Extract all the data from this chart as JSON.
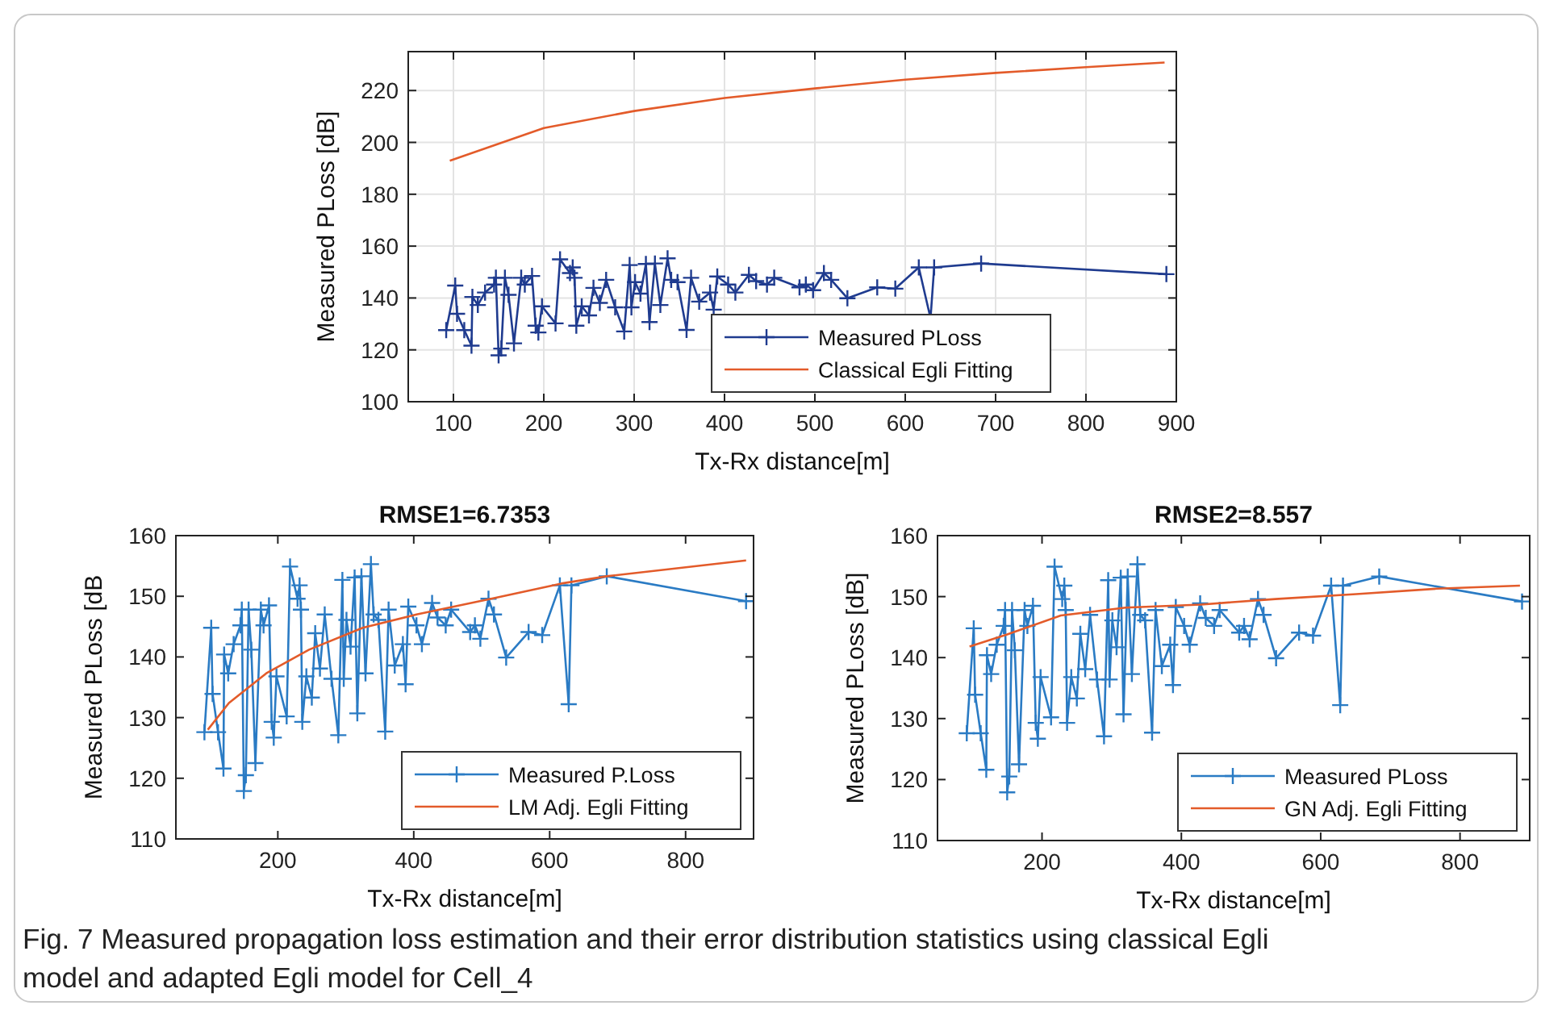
{
  "chart_data": [
    {
      "type": "line",
      "xlabel": "Tx-Rx distance[m]",
      "ylabel": "Measured  PLoss [dB]",
      "xlim": [
        50,
        900
      ],
      "ylim": [
        100,
        235
      ],
      "xticks": [
        100,
        200,
        300,
        400,
        500,
        600,
        700,
        800,
        900
      ],
      "yticks": [
        100,
        120,
        140,
        160,
        180,
        200,
        220
      ],
      "grid": true,
      "legend": "bottom right",
      "series": [
        {
          "name": "Measured PLoss",
          "color": "#1f3b8f",
          "marker": "cross",
          "x": [
            92,
            102,
            104,
            112,
            120,
            121,
            127,
            135,
            145,
            147,
            150,
            153,
            157,
            161,
            167,
            175,
            179,
            187,
            191,
            194,
            198,
            213,
            218,
            229,
            232,
            234,
            236,
            242,
            250,
            255,
            262,
            269,
            279,
            289,
            295,
            297,
            301,
            307,
            313,
            317,
            323,
            329,
            337,
            341,
            348,
            358,
            363,
            372,
            384,
            388,
            392,
            404,
            412,
            427,
            435,
            447,
            455,
            483,
            490,
            498,
            510,
            518,
            536,
            569,
            589,
            615,
            628,
            632,
            684,
            889
          ],
          "values": [
            127.6,
            144.8,
            133.9,
            127.6,
            121.6,
            140.4,
            137.3,
            142.1,
            145.2,
            147.8,
            117.9,
            120.5,
            147.8,
            141.2,
            122.5,
            147.8,
            145.2,
            148.5,
            129.3,
            126.7,
            136.8,
            130.2,
            154.9,
            149.6,
            151.8,
            147.8,
            129.3,
            136.8,
            133.3,
            143.9,
            138.1,
            147,
            136.4,
            127.1,
            152.7,
            136.4,
            146.1,
            141.7,
            153.1,
            130.7,
            153.3,
            137.3,
            155.3,
            147,
            146.1,
            127.7,
            147.8,
            138.6,
            142.1,
            135.5,
            148.3,
            145.2,
            142.1,
            148.9,
            146.5,
            145.2,
            147.8,
            144.1,
            145.2,
            143,
            149.6,
            147,
            139.9,
            144.1,
            143.6,
            151.8,
            132.2,
            151.8,
            153.3,
            149.2
          ]
        },
        {
          "name": "Classical Egli Fitting",
          "color": "#e35b2a",
          "marker": "none",
          "x": [
            96,
            200,
            300,
            400,
            500,
            600,
            700,
            800,
            887
          ],
          "values": [
            192.9,
            205.5,
            212.1,
            217.1,
            220.8,
            224.2,
            226.8,
            229,
            230.8
          ]
        }
      ]
    },
    {
      "type": "line",
      "title": "RMSE1=6.7353",
      "xlabel": "Tx-Rx distance[m]",
      "ylabel": "Measured  PLoss [dB",
      "xlim": [
        50,
        900
      ],
      "ylim": [
        110,
        160
      ],
      "xticks": [
        200,
        400,
        600,
        800
      ],
      "yticks": [
        110,
        120,
        130,
        140,
        150,
        160
      ],
      "grid": false,
      "legend": "bottom right",
      "series": [
        {
          "name": "Measured P.Loss",
          "color": "#2a7bc4",
          "marker": "cross",
          "x": [
            92,
            102,
            104,
            112,
            120,
            121,
            127,
            135,
            145,
            147,
            150,
            153,
            157,
            161,
            167,
            175,
            179,
            187,
            191,
            194,
            198,
            213,
            218,
            229,
            232,
            234,
            236,
            242,
            250,
            255,
            262,
            269,
            279,
            289,
            295,
            297,
            301,
            307,
            313,
            317,
            323,
            329,
            337,
            341,
            348,
            358,
            363,
            372,
            384,
            388,
            392,
            404,
            412,
            427,
            435,
            447,
            455,
            483,
            490,
            498,
            510,
            518,
            536,
            569,
            589,
            615,
            628,
            632,
            684,
            889
          ],
          "values": [
            127.6,
            144.8,
            133.9,
            127.6,
            121.6,
            140.4,
            137.3,
            142.1,
            145.2,
            147.8,
            117.9,
            120.5,
            147.8,
            141.2,
            122.5,
            147.8,
            145.2,
            148.5,
            129.3,
            126.7,
            136.8,
            130.2,
            154.9,
            149.6,
            151.8,
            147.8,
            129.3,
            136.8,
            133.3,
            143.9,
            138.1,
            147,
            136.4,
            127.1,
            152.7,
            136.4,
            146.1,
            141.7,
            153.1,
            130.7,
            153.3,
            137.3,
            155.3,
            147,
            146.1,
            127.7,
            147.8,
            138.6,
            142.1,
            135.5,
            148.3,
            145.2,
            142.1,
            148.9,
            146.5,
            145.2,
            147.8,
            144.1,
            145.2,
            143,
            149.6,
            147,
            139.9,
            144.1,
            143.6,
            151.8,
            132.2,
            151.8,
            153.3,
            149.2
          ]
        },
        {
          "name": "LM Adj. Egli Fitting",
          "color": "#e35b2a",
          "marker": "none",
          "x": [
            97,
            128,
            183,
            246,
            325,
            404,
            514,
            617,
            684,
            889
          ],
          "values": [
            128,
            132.4,
            137.3,
            141.2,
            144.8,
            147,
            149.6,
            152.1,
            153.3,
            155.9
          ]
        }
      ]
    },
    {
      "type": "line",
      "title": "RMSE2=8.557",
      "xlabel": "Tx-Rx distance[m]",
      "ylabel": "Measured  PLoss [dB]",
      "xlim": [
        50,
        900
      ],
      "ylim": [
        110,
        160
      ],
      "xticks": [
        200,
        400,
        600,
        800
      ],
      "yticks": [
        110,
        120,
        130,
        140,
        150,
        160
      ],
      "grid": false,
      "legend": "bottom right",
      "annotations": [
        "Fig. 7 Measured propagation loss estimation and their error distribution statistics using classical Egli model and adapted Egli model for Cell_4"
      ],
      "series": [
        {
          "name": "Measured PLoss",
          "color": "#2a7bc4",
          "marker": "cross",
          "x": [
            92,
            102,
            104,
            112,
            120,
            121,
            127,
            135,
            145,
            147,
            150,
            153,
            157,
            161,
            167,
            175,
            179,
            187,
            191,
            194,
            198,
            213,
            218,
            229,
            232,
            234,
            236,
            242,
            250,
            255,
            262,
            269,
            279,
            289,
            295,
            297,
            301,
            307,
            313,
            317,
            323,
            329,
            337,
            341,
            348,
            358,
            363,
            372,
            384,
            388,
            392,
            404,
            412,
            427,
            435,
            447,
            455,
            483,
            490,
            498,
            510,
            518,
            536,
            569,
            589,
            615,
            628,
            632,
            684,
            889
          ],
          "values": [
            127.6,
            144.8,
            133.9,
            127.6,
            121.6,
            140.4,
            137.3,
            142.1,
            145.2,
            147.8,
            117.9,
            120.5,
            147.8,
            141.2,
            122.5,
            147.8,
            145.2,
            148.5,
            129.3,
            126.7,
            136.8,
            130.2,
            154.9,
            149.6,
            151.8,
            147.8,
            129.3,
            136.8,
            133.3,
            143.9,
            138.1,
            147,
            136.4,
            127.1,
            152.7,
            136.4,
            146.1,
            141.7,
            153.1,
            130.7,
            153.3,
            137.3,
            155.3,
            147,
            146.1,
            127.7,
            147.8,
            138.6,
            142.1,
            135.5,
            148.3,
            145.2,
            142.1,
            148.9,
            146.5,
            145.2,
            147.8,
            144.1,
            145.2,
            143,
            149.6,
            147,
            139.9,
            144.1,
            143.6,
            151.8,
            132.2,
            151.8,
            153.3,
            149.2
          ]
        },
        {
          "name": "GN Adj. Egli Fitting",
          "color": "#e35b2a",
          "marker": "none",
          "x": [
            96,
            150,
            227,
            320,
            428,
            535,
            651,
            767,
            886
          ],
          "values": [
            141.8,
            143.8,
            146.9,
            148.2,
            148.7,
            149.6,
            150.4,
            151.3,
            151.8
          ]
        }
      ]
    }
  ]
}
